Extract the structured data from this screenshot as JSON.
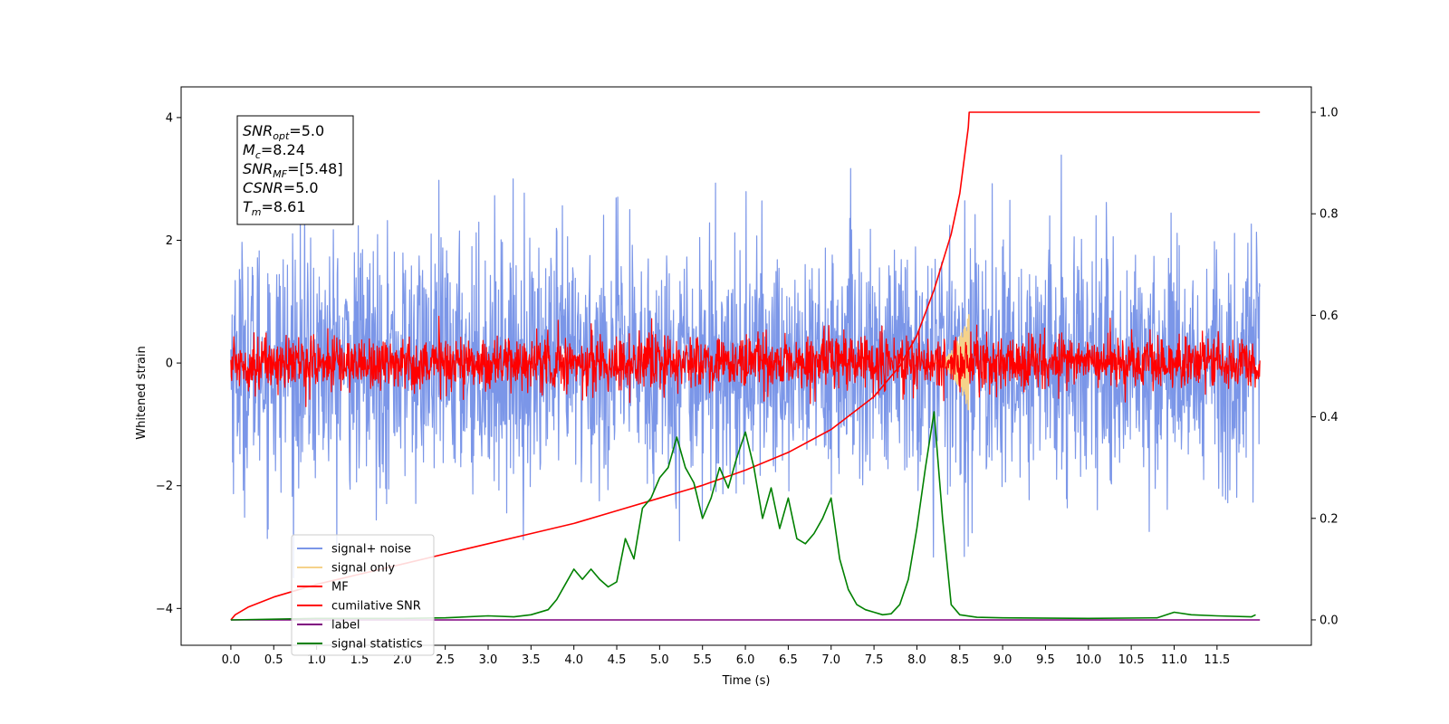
{
  "chart_data": {
    "type": "line",
    "title": "",
    "xlabel": "Time (s)",
    "ylabel": "Whitened strain",
    "xlim": [
      -0.58,
      12.6
    ],
    "ylim": [
      -4.6,
      4.5
    ],
    "y2lim": [
      -0.05,
      1.05
    ],
    "xticks": [
      0.0,
      0.5,
      1.0,
      1.5,
      2.0,
      2.5,
      3.0,
      3.5,
      4.0,
      4.5,
      5.0,
      5.5,
      6.0,
      6.5,
      7.0,
      7.5,
      8.0,
      8.5,
      9.0,
      9.5,
      10.0,
      10.5,
      11.0,
      11.5
    ],
    "xtick_labels": [
      "0.0",
      "0.5",
      "1.0",
      "1.5",
      "2.0",
      "2.5",
      "3.0",
      "3.5",
      "4.0",
      "4.5",
      "5.0",
      "5.5",
      "6.0",
      "6.5",
      "7.0",
      "7.5",
      "8.0",
      "8.5",
      "9.0",
      "9.5",
      "10.0",
      "10.5",
      "11.0",
      "11.5"
    ],
    "yticks": [
      -4,
      -2,
      0,
      2,
      4
    ],
    "ytick_labels": [
      "−4",
      "−2",
      "0",
      "2",
      "4"
    ],
    "y2ticks": [
      0.0,
      0.2,
      0.4,
      0.6,
      0.8,
      1.0
    ],
    "y2tick_labels": [
      "0.0",
      "0.2",
      "0.4",
      "0.6",
      "0.8",
      "1.0"
    ],
    "grid": false,
    "legend_position": "bottom-left",
    "info_box": {
      "position": "top-left",
      "lines": [
        {
          "base": "SNR",
          "sub": "opt",
          "value": "=5.0"
        },
        {
          "base": "M",
          "sub": "c",
          "value": "=8.24"
        },
        {
          "base": "SNR",
          "sub": "MF",
          "value": "=[5.48]"
        },
        {
          "base": "CSNR",
          "sub": "",
          "value": "=5.0"
        },
        {
          "base": "T",
          "sub": "m",
          "value": "=8.61"
        }
      ]
    },
    "series": [
      {
        "name": "signal+ noise",
        "color": "#7b96e8",
        "axis": "left",
        "kind": "noise",
        "x_range": [
          0.0,
          12.0
        ],
        "mean": 0.0,
        "std": 1.0,
        "samples": 2400
      },
      {
        "name": "signal only",
        "color": "#f5d28a",
        "axis": "left",
        "kind": "chirp",
        "x_range": [
          8.2,
          8.61
        ],
        "peak": 0.8
      },
      {
        "name": "MF",
        "color": "#ff0000",
        "axis": "left",
        "kind": "noise",
        "x_range": [
          0.0,
          12.0
        ],
        "mean": 0.0,
        "std": 0.22,
        "samples": 2400
      },
      {
        "name": "cumilative SNR",
        "color": "#ff0000",
        "axis": "right",
        "x": [
          0.0,
          0.05,
          0.2,
          0.5,
          1.0,
          1.5,
          2.0,
          2.5,
          3.0,
          3.5,
          4.0,
          4.5,
          5.0,
          5.5,
          6.0,
          6.5,
          7.0,
          7.5,
          7.8,
          8.0,
          8.2,
          8.4,
          8.5,
          8.6,
          8.61,
          12.0
        ],
        "y": [
          0.0,
          0.01,
          0.025,
          0.045,
          0.07,
          0.09,
          0.11,
          0.13,
          0.15,
          0.17,
          0.19,
          0.215,
          0.24,
          0.265,
          0.295,
          0.33,
          0.375,
          0.44,
          0.5,
          0.56,
          0.65,
          0.76,
          0.84,
          0.97,
          1.0,
          1.0
        ]
      },
      {
        "name": "label",
        "color": "#800080",
        "axis": "right",
        "x": [
          0.0,
          12.0
        ],
        "y": [
          0.0,
          0.0
        ]
      },
      {
        "name": "signal statistics",
        "color": "#008000",
        "axis": "right",
        "x": [
          0.0,
          1.0,
          2.0,
          2.5,
          3.0,
          3.3,
          3.5,
          3.7,
          3.8,
          3.9,
          4.0,
          4.1,
          4.2,
          4.3,
          4.4,
          4.5,
          4.6,
          4.7,
          4.8,
          4.9,
          5.0,
          5.1,
          5.2,
          5.3,
          5.4,
          5.5,
          5.6,
          5.7,
          5.8,
          5.9,
          6.0,
          6.1,
          6.2,
          6.3,
          6.4,
          6.5,
          6.6,
          6.7,
          6.8,
          6.9,
          7.0,
          7.1,
          7.2,
          7.3,
          7.4,
          7.5,
          7.6,
          7.7,
          7.8,
          7.9,
          8.0,
          8.1,
          8.2,
          8.3,
          8.4,
          8.5,
          8.7,
          9.0,
          10.0,
          10.8,
          11.0,
          11.2,
          11.5,
          11.9,
          11.95
        ],
        "y": [
          0.0,
          0.003,
          0.003,
          0.004,
          0.008,
          0.006,
          0.01,
          0.02,
          0.04,
          0.07,
          0.1,
          0.08,
          0.1,
          0.08,
          0.065,
          0.075,
          0.16,
          0.12,
          0.22,
          0.24,
          0.28,
          0.3,
          0.36,
          0.3,
          0.27,
          0.2,
          0.24,
          0.3,
          0.26,
          0.32,
          0.37,
          0.3,
          0.2,
          0.26,
          0.18,
          0.24,
          0.16,
          0.15,
          0.17,
          0.2,
          0.24,
          0.12,
          0.06,
          0.03,
          0.02,
          0.015,
          0.01,
          0.012,
          0.03,
          0.08,
          0.18,
          0.3,
          0.41,
          0.2,
          0.03,
          0.01,
          0.005,
          0.004,
          0.003,
          0.004,
          0.015,
          0.01,
          0.008,
          0.006,
          0.01
        ]
      }
    ]
  }
}
